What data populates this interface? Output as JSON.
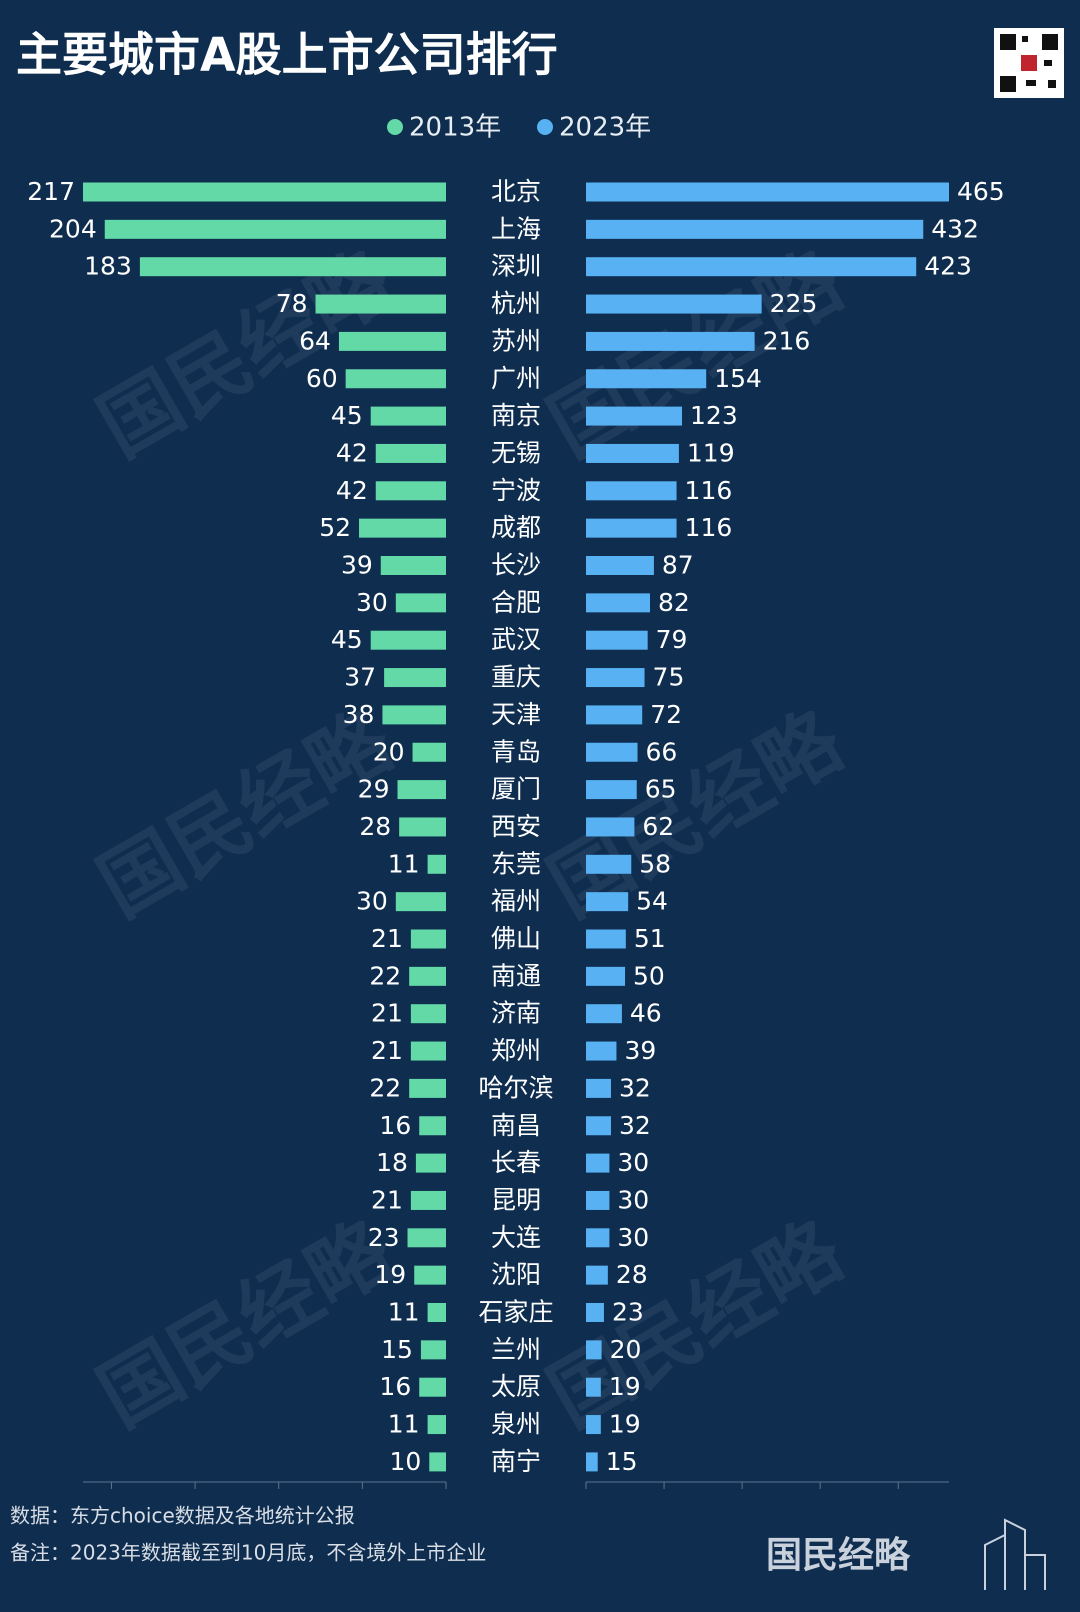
{
  "chart_data": {
    "type": "butterfly",
    "title": "主要城市A股上市公司排行",
    "categories": [
      "北京",
      "上海",
      "深圳",
      "杭州",
      "苏州",
      "广州",
      "南京",
      "无锡",
      "宁波",
      "成都",
      "长沙",
      "合肥",
      "武汉",
      "重庆",
      "天津",
      "青岛",
      "厦门",
      "西安",
      "东莞",
      "福州",
      "佛山",
      "南通",
      "济南",
      "郑州",
      "哈尔滨",
      "南昌",
      "长春",
      "昆明",
      "大连",
      "沈阳",
      "石家庄",
      "兰州",
      "太原",
      "泉州",
      "南宁"
    ],
    "series": [
      {
        "name": "2013年",
        "color": "#62d9a6",
        "side": "left",
        "xlim": [
          0,
          217
        ],
        "xticks": [
          0,
          50,
          100,
          150,
          200
        ],
        "values": [
          217,
          204,
          183,
          78,
          64,
          60,
          45,
          42,
          42,
          52,
          39,
          30,
          45,
          37,
          38,
          20,
          29,
          28,
          11,
          30,
          21,
          22,
          21,
          21,
          22,
          16,
          18,
          21,
          23,
          19,
          11,
          15,
          16,
          11,
          10
        ]
      },
      {
        "name": "2023年",
        "color": "#58b1f2",
        "side": "right",
        "xlim": [
          0,
          465
        ],
        "xticks": [
          0,
          100,
          200,
          300,
          400
        ],
        "values": [
          465,
          432,
          423,
          225,
          216,
          154,
          123,
          119,
          116,
          116,
          87,
          82,
          79,
          75,
          72,
          66,
          65,
          62,
          58,
          54,
          51,
          50,
          46,
          39,
          32,
          32,
          30,
          30,
          30,
          28,
          23,
          20,
          19,
          19,
          15
        ]
      }
    ],
    "source": "数据：东方choice数据及各地统计公报",
    "note": "备注：2023年数据截至到10月底，不含境外上市企业",
    "watermark": "国民经略"
  }
}
